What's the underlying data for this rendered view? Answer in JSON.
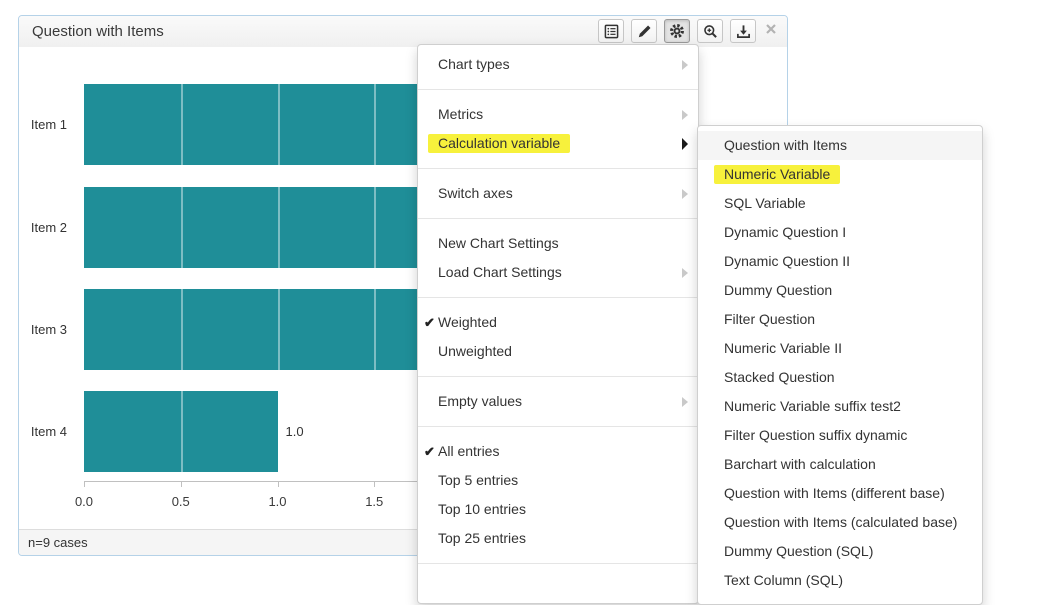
{
  "panel": {
    "title": "Question with Items",
    "footer": "n=9 cases",
    "toolbar_icons": [
      "list-icon",
      "pencil-icon",
      "gear-icon",
      "magnifier-plus-icon",
      "download-icon",
      "close-icon"
    ],
    "toolbar_active": "gear-icon"
  },
  "chart_data": {
    "type": "bar",
    "orientation": "horizontal",
    "title": "Question with Items",
    "categories": [
      "Item 1",
      "Item 2",
      "Item 3",
      "Item 4"
    ],
    "values": [
      2.0,
      2.0,
      2.0,
      1.0
    ],
    "value_labels": [
      null,
      null,
      null,
      "1.0"
    ],
    "occluded_by_menu": [
      true,
      true,
      true,
      false
    ],
    "xticks": [
      "0.0",
      "0.5",
      "1.0",
      "1.5"
    ],
    "xlim": [
      0,
      2.0
    ],
    "grid": "vertical, every 0.5, drawn over bars",
    "legend": "none",
    "bar_color": "#1f8e98",
    "base_note": "n=9 cases"
  },
  "settings_menu": {
    "items": [
      {
        "label": "Chart types",
        "arrow": true
      },
      {
        "separator": true
      },
      {
        "label": "Metrics",
        "arrow": true
      },
      {
        "label": "Calculation variable",
        "arrow": true,
        "active_arrow": true,
        "highlighted": true
      },
      {
        "separator": true
      },
      {
        "label": "Switch axes",
        "arrow": true
      },
      {
        "separator": true
      },
      {
        "label": "New Chart Settings"
      },
      {
        "label": "Load Chart Settings",
        "arrow": true
      },
      {
        "separator": true
      },
      {
        "label": "Weighted",
        "checked": true
      },
      {
        "label": "Unweighted"
      },
      {
        "separator": true
      },
      {
        "label": "Empty values",
        "arrow": true
      },
      {
        "separator": true
      },
      {
        "label": "All entries",
        "checked": true
      },
      {
        "label": "Top 5 entries"
      },
      {
        "label": "Top 10 entries"
      },
      {
        "label": "Top 25 entries"
      },
      {
        "separator": true
      }
    ],
    "highlight_color": "#f7f13c"
  },
  "submenu": {
    "items": [
      {
        "label": "Question with Items",
        "hover": true
      },
      {
        "label": "Numeric Variable",
        "highlighted": true
      },
      {
        "label": "SQL Variable"
      },
      {
        "label": "Dynamic Question I"
      },
      {
        "label": "Dynamic Question II"
      },
      {
        "label": "Dummy Question"
      },
      {
        "label": "Filter Question"
      },
      {
        "label": "Numeric Variable II"
      },
      {
        "label": "Stacked Question"
      },
      {
        "label": "Numeric Variable suffix test2"
      },
      {
        "label": "Filter Question suffix dynamic"
      },
      {
        "label": "Barchart with calculation"
      },
      {
        "label": "Question with Items (different base)"
      },
      {
        "label": "Question with Items (calculated base)"
      },
      {
        "label": "Dummy Question (SQL)"
      },
      {
        "label": "Text Column (SQL)"
      }
    ]
  }
}
